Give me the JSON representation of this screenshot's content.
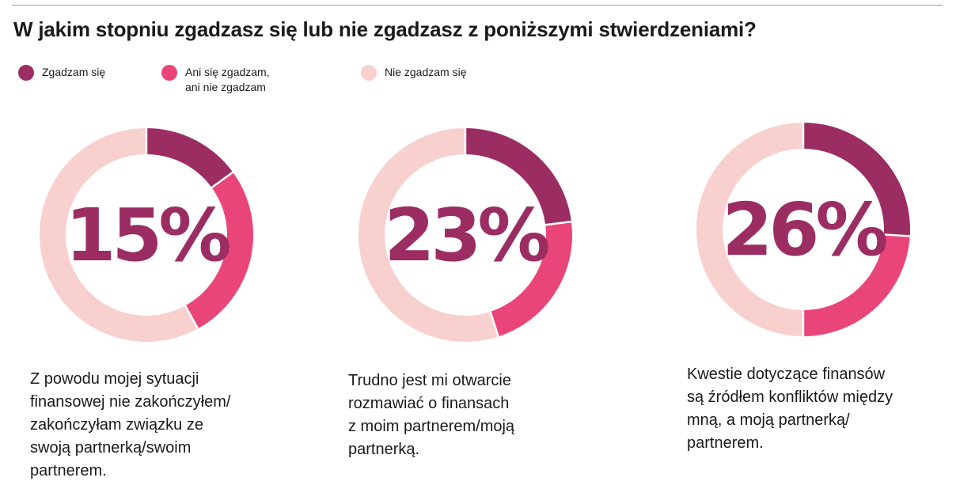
{
  "title": "W jakim stopniu zgadzasz się lub nie zgadzasz z poniższymi stwierdzeniami?",
  "colors": {
    "agree": "#9b2d63",
    "neutral": "#ea4579",
    "disagree": "#f8d0cd",
    "pct_text": "#9b2d63"
  },
  "legend": [
    {
      "label": "Zgadzam się",
      "color": "#9b2d63"
    },
    {
      "label": "Ani się zgadzam,\nani nie zgadzam",
      "color": "#ea4579"
    },
    {
      "label": "Nie zgadzam się",
      "color": "#f8d0cd"
    }
  ],
  "chart_data": [
    {
      "type": "pie",
      "center_label": "15%",
      "caption": "Z powodu mojej sytuacji\nfinansowej nie zakończyłem/\nzakończyłam związku ze\nswoją partnerką/swoim\npartnerem.",
      "slices": [
        {
          "category": "Zgadzam się",
          "value": 15
        },
        {
          "category": "Ani się zgadzam, ani nie zgadzam",
          "value": 27
        },
        {
          "category": "Nie zgadzam się",
          "value": 58
        }
      ]
    },
    {
      "type": "pie",
      "center_label": "23%",
      "caption": "Trudno jest mi otwarcie\nrozmawiać o finansach\nz moim partnerem/moją\npartnerką.",
      "slices": [
        {
          "category": "Zgadzam się",
          "value": 23
        },
        {
          "category": "Ani się zgadzam, ani nie zgadzam",
          "value": 22
        },
        {
          "category": "Nie zgadzam się",
          "value": 55
        }
      ]
    },
    {
      "type": "pie",
      "center_label": "26%",
      "caption": "Kwestie dotyczące finansów\nsą źródłem konfliktów między\nmną, a moją partnerką/\npartnerem.",
      "slices": [
        {
          "category": "Zgadzam się",
          "value": 26
        },
        {
          "category": "Ani się zgadzam, ani nie zgadzam",
          "value": 24
        },
        {
          "category": "Nie zgadzam się",
          "value": 50
        }
      ]
    }
  ]
}
